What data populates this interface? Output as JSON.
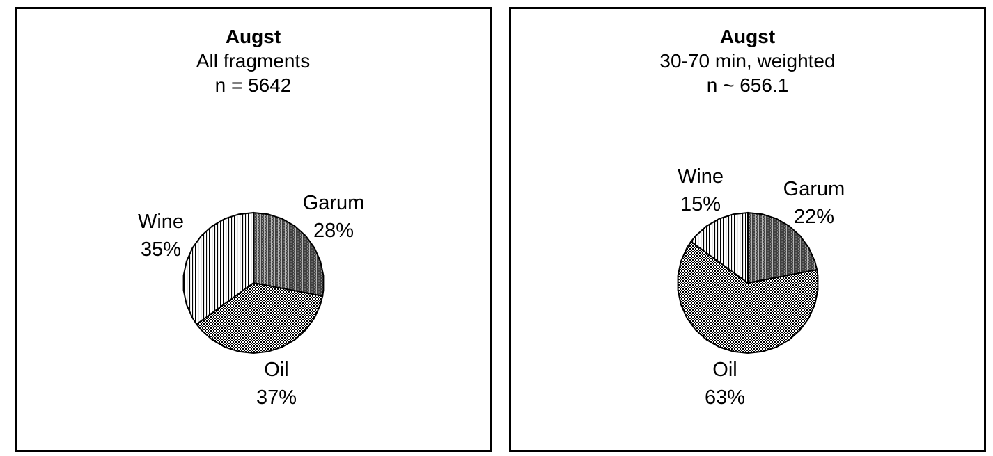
{
  "styles": {
    "background": "#ffffff",
    "panel_border_color": "#000000",
    "text_color": "#000000",
    "slice_outline_color": "#000000",
    "garum_dark_fill": "#3f3f3f",
    "pattern_line_gray": "#b8b8b8",
    "pattern_dot_white": "#ffffff",
    "oil_checker_black": "#000000",
    "wine_stripe_black": "#000000"
  },
  "chart_data": [
    {
      "type": "pie",
      "title": "Augst",
      "subtitle": "All fragments",
      "n_label": "n = 5642",
      "categories": [
        "Garum",
        "Oil",
        "Wine"
      ],
      "values": [
        28,
        37,
        35
      ],
      "slices": [
        {
          "label": "Garum",
          "value": 28,
          "value_label": "28%",
          "pattern": "dark-dotted-vertical"
        },
        {
          "label": "Oil",
          "value": 37,
          "value_label": "37%",
          "pattern": "checker-dither"
        },
        {
          "label": "Wine",
          "value": 35,
          "value_label": "35%",
          "pattern": "vertical-stripes"
        }
      ],
      "layout": {
        "start_angle_deg": 0,
        "direction": "clockwise",
        "labels": "outside",
        "legend": "none"
      }
    },
    {
      "type": "pie",
      "title": "Augst",
      "subtitle": "30-70 min, weighted",
      "n_label": "n ~ 656.1",
      "categories": [
        "Garum",
        "Oil",
        "Wine"
      ],
      "values": [
        22,
        63,
        15
      ],
      "slices": [
        {
          "label": "Garum",
          "value": 22,
          "value_label": "22%",
          "pattern": "dark-dotted-vertical"
        },
        {
          "label": "Oil",
          "value": 63,
          "value_label": "63%",
          "pattern": "checker-dither"
        },
        {
          "label": "Wine",
          "value": 15,
          "value_label": "15%",
          "pattern": "vertical-stripes"
        }
      ],
      "layout": {
        "start_angle_deg": 0,
        "direction": "clockwise",
        "labels": "outside",
        "legend": "none"
      }
    }
  ]
}
